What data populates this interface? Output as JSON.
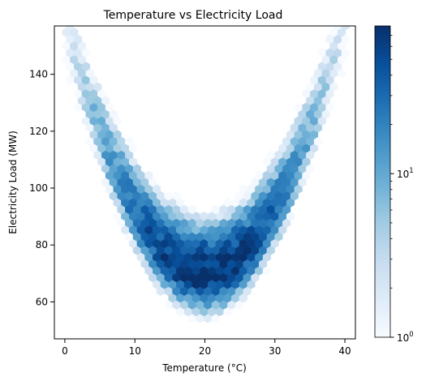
{
  "chart_data": {
    "type": "hexbin",
    "title": "Temperature vs Electricity Load",
    "xlabel": "Temperature (°C)",
    "ylabel": "Electricity Load (MW)",
    "xlim": [
      -1.5,
      41.5
    ],
    "ylim": [
      47,
      157
    ],
    "x_ticks": [
      0,
      10,
      20,
      30,
      40
    ],
    "y_ticks": [
      60,
      80,
      100,
      120,
      140
    ],
    "x_tick_labels": [
      "0",
      "10",
      "20",
      "30",
      "40"
    ],
    "y_tick_labels": [
      "60",
      "80",
      "100",
      "120",
      "140"
    ],
    "relationship": {
      "description": "U-shaped: load ≈ 70 + 0.22·(T − 20)^2",
      "minimum_temperature": 20,
      "minimum_load": 70,
      "curvature": 0.22,
      "temperature_range": [
        0.5,
        40
      ],
      "density_peak": {
        "temperature": 20,
        "load": 71
      }
    },
    "colorbar": {
      "label": "",
      "scale": "log",
      "min": 1,
      "max": 80,
      "tick_labels": [
        {
          "value": 1,
          "base": "10",
          "exp": "0"
        },
        {
          "value": 10,
          "base": "10",
          "exp": "1"
        }
      ],
      "colormap": "Blues"
    },
    "grid": false,
    "legend": "none"
  }
}
